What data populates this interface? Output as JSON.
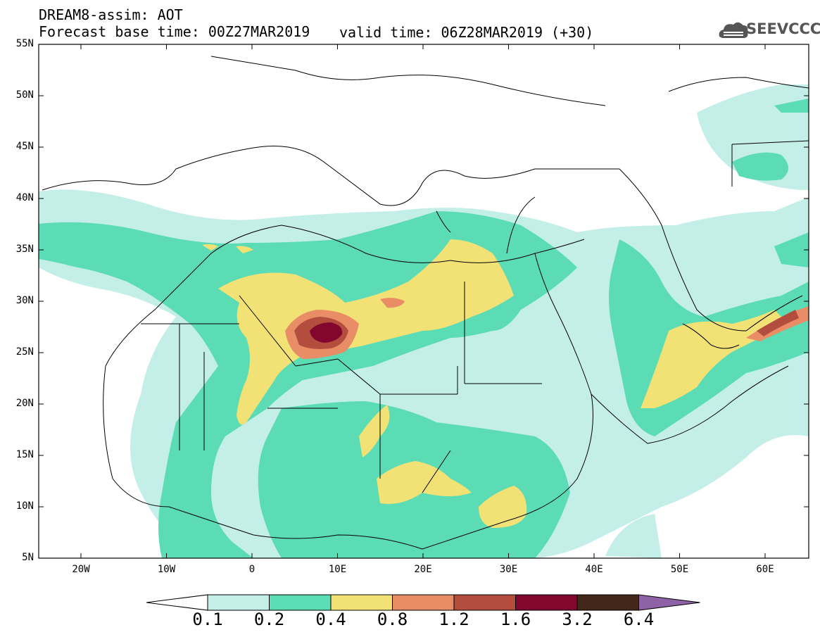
{
  "header": {
    "title": "DREAM8-assim: AOT",
    "base_time": "Forecast base time: 00Z27MAR2019",
    "valid_time": "valid time: 06Z28MAR2019 (+30)",
    "logo_text": "SEEVCCC"
  },
  "map": {
    "lat_labels": [
      "55N",
      "50N",
      "45N",
      "40N",
      "35N",
      "30N",
      "25N",
      "20N",
      "15N",
      "10N",
      "5N"
    ],
    "lon_labels": [
      "20W",
      "10W",
      "0",
      "10E",
      "20E",
      "30E",
      "40E",
      "50E",
      "60E"
    ]
  },
  "legend": {
    "labels": [
      "0.1",
      "0.2",
      "0.4",
      "0.8",
      "1.2",
      "1.6",
      "3.2",
      "6.4"
    ],
    "colors": [
      "#ffffff",
      "#c4efe9",
      "#5cdcb4",
      "#f2e276",
      "#e88d65",
      "#b34d3e",
      "#82062e",
      "#42271a",
      "#8e62a4"
    ]
  },
  "colors": {
    "aot_0_1": "#c4efe9",
    "aot_0_2": "#5cdcb4",
    "aot_0_4": "#f2e276",
    "aot_0_8": "#e88d65",
    "aot_1_2": "#b34d3e",
    "aot_1_6": "#82062e"
  }
}
